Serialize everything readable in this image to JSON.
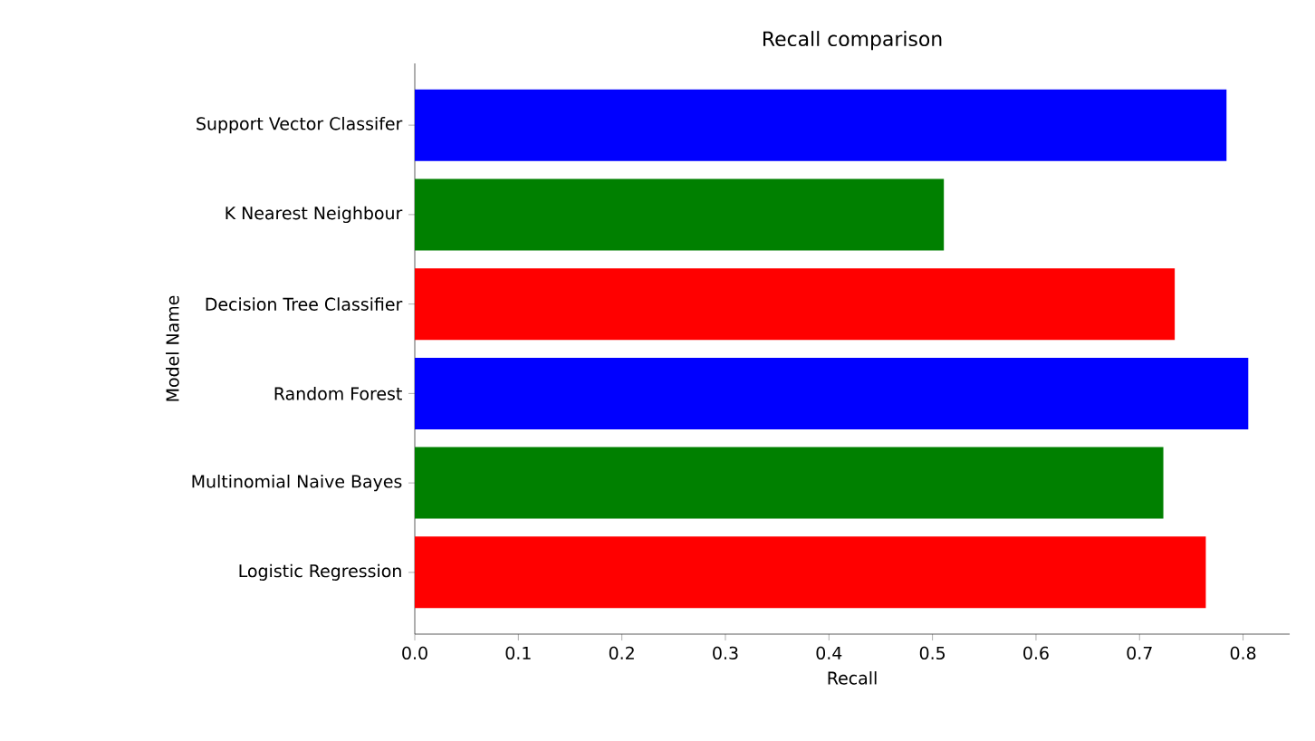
{
  "chart_data": {
    "type": "bar",
    "orientation": "horizontal",
    "title": "Recall comparison",
    "xlabel": "Recall",
    "ylabel": "Model Name",
    "categories": [
      "Support Vector Classifer",
      "K Nearest Neighbour",
      "Decision Tree Classifier",
      "Random Forest",
      "Multinomial Naive Bayes",
      "Logistic Regression"
    ],
    "values": [
      0.784,
      0.511,
      0.734,
      0.805,
      0.723,
      0.764
    ],
    "colors": [
      "#0000ff",
      "#008000",
      "#ff0000",
      "#0000ff",
      "#008000",
      "#ff0000"
    ],
    "xlim": [
      0,
      0.845
    ],
    "xticks": [
      {
        "value": 0,
        "label": "0.0"
      },
      0.1,
      0.2,
      0.3,
      0.4,
      0.5,
      0.6,
      0.7,
      0.8
    ],
    "grid": false
  }
}
